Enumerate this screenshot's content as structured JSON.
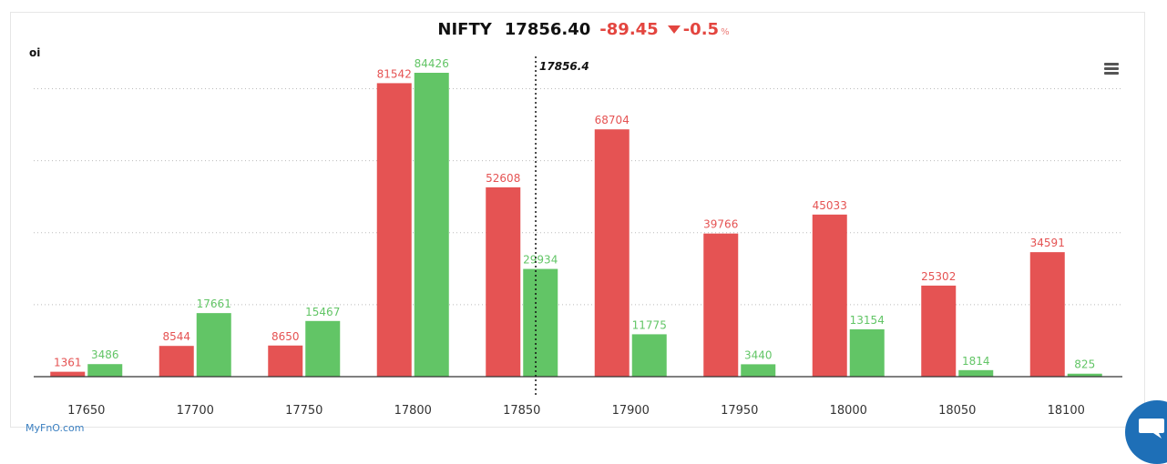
{
  "header": {
    "symbol": "NIFTY",
    "price": "17856.40",
    "change": "-89.45",
    "change_pct": "-0.5",
    "pct_sign": "%"
  },
  "brand": "MyFnO.com",
  "icons": {
    "menu": "hamburger-menu-icon",
    "chat": "chat-bubble-icon",
    "down": "triangle-down-icon"
  },
  "colors": {
    "put": "#e55353",
    "call": "#62c566",
    "negative": "#e3453f",
    "brand": "#3a7fc1"
  },
  "chart_data": {
    "type": "bar",
    "ylabel": "oi",
    "categories": [
      "17650",
      "17700",
      "17750",
      "17800",
      "17850",
      "17900",
      "17950",
      "18000",
      "18050",
      "18100"
    ],
    "series": [
      {
        "color": "#e55353",
        "values": [
          1361,
          8544,
          8650,
          81542,
          52608,
          68704,
          39766,
          45033,
          25302,
          34591
        ]
      },
      {
        "color": "#62c566",
        "values": [
          3486,
          17661,
          15467,
          84426,
          29934,
          11775,
          3440,
          13154,
          1814,
          825
        ]
      }
    ],
    "ylim": [
      0,
      86000
    ],
    "spot": {
      "value": 17856.4,
      "label": "17856.4"
    },
    "grid": true
  }
}
